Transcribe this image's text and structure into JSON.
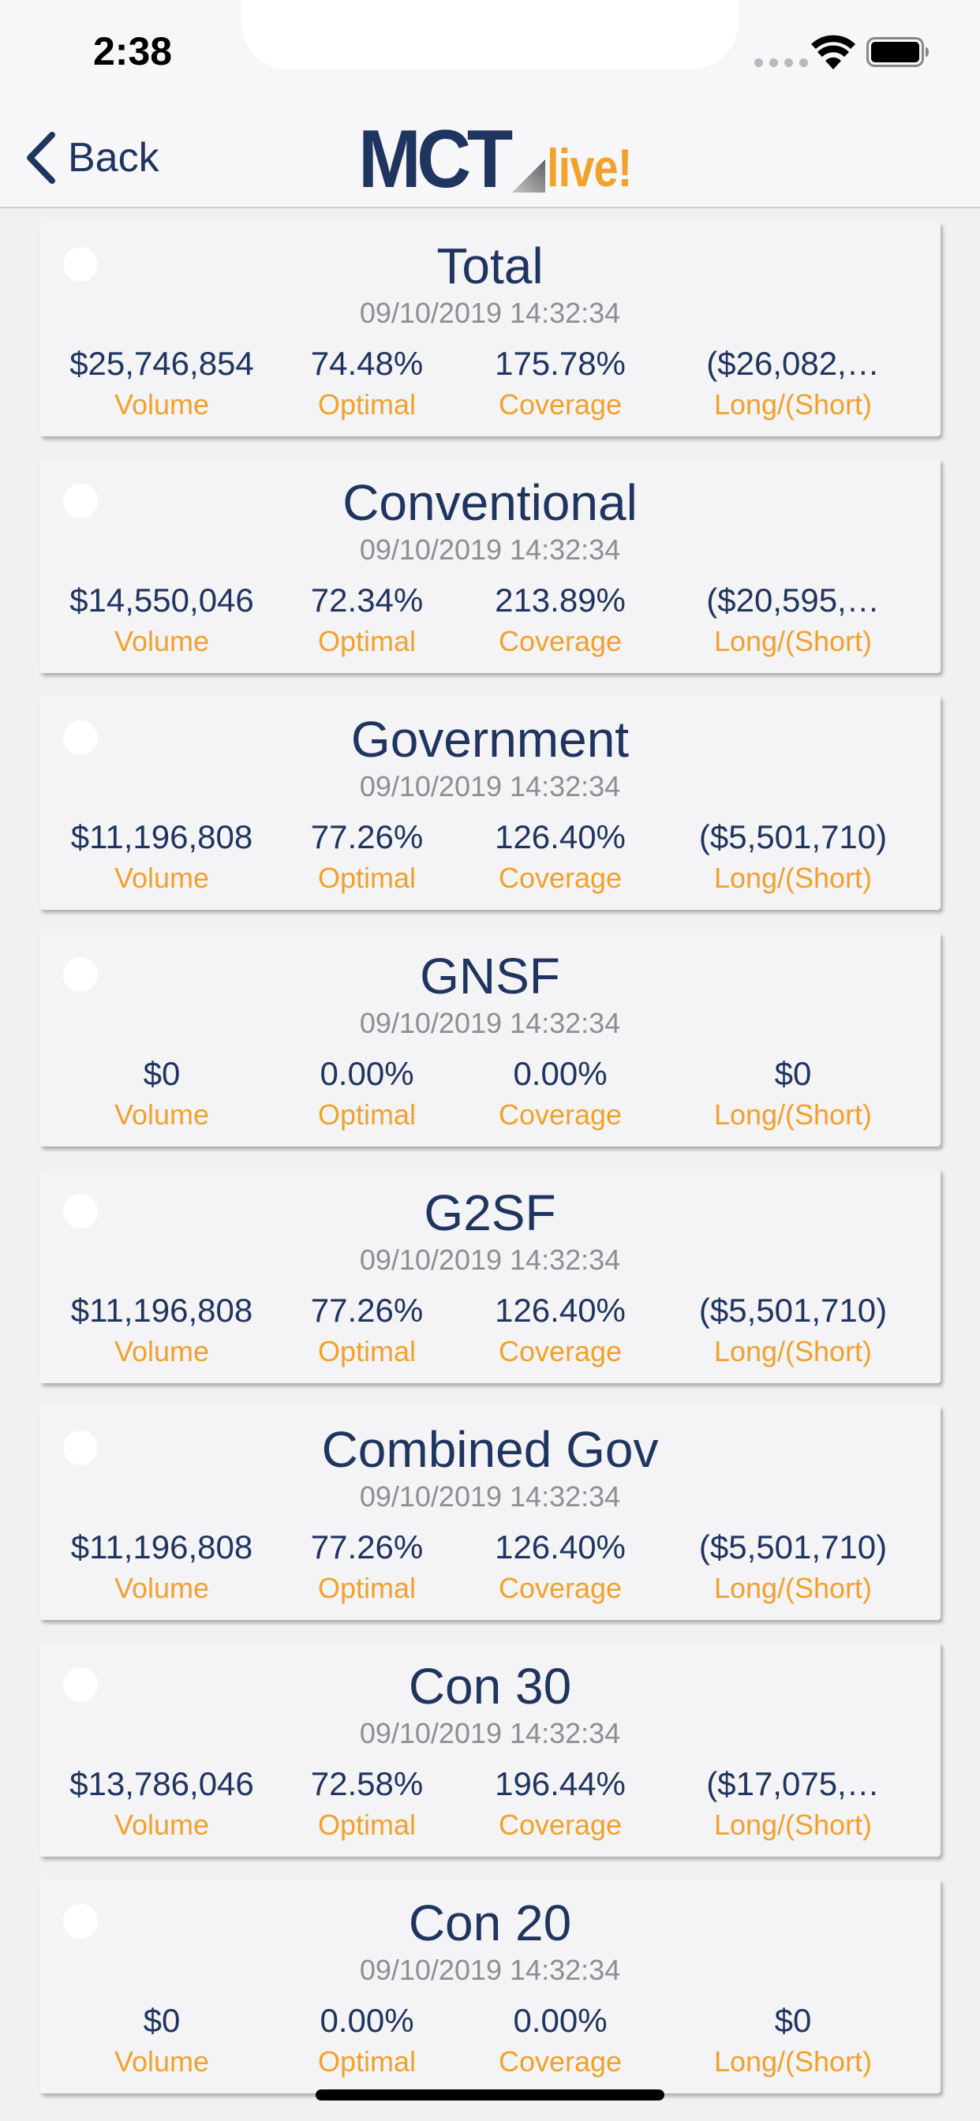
{
  "status_bar": {
    "time": "2:38"
  },
  "nav": {
    "back_label": "Back",
    "logo_primary": "MCT",
    "logo_secondary": "live!"
  },
  "metric_labels": [
    "Volume",
    "Optimal",
    "Coverage",
    "Long/(Short)"
  ],
  "cards": [
    {
      "title": "Total",
      "timestamp": "09/10/2019 14:32:34",
      "volume": "$25,746,854",
      "optimal": "74.48%",
      "coverage": "175.78%",
      "long_short": "($26,082,…",
      "labels": [
        "Volume",
        "Optimal",
        "Coverage",
        "Long/(Short)"
      ]
    },
    {
      "title": "Conventional",
      "timestamp": "09/10/2019 14:32:34",
      "volume": "$14,550,046",
      "optimal": "72.34%",
      "coverage": "213.89%",
      "long_short": "($20,595,…",
      "labels": [
        "Volume",
        "Optimal",
        "Coverage",
        "Long/(Short)"
      ]
    },
    {
      "title": "Government",
      "timestamp": "09/10/2019 14:32:34",
      "volume": "$11,196,808",
      "optimal": "77.26%",
      "coverage": "126.40%",
      "long_short": "($5,501,710)",
      "labels": [
        "Volume",
        "Optimal",
        "Coverage",
        "Long/(Short)"
      ]
    },
    {
      "title": "GNSF",
      "timestamp": "09/10/2019 14:32:34",
      "volume": "$0",
      "optimal": "0.00%",
      "coverage": "0.00%",
      "long_short": "$0",
      "labels": [
        "Volume",
        "Optimal",
        "Coverage",
        "Long/(Short)"
      ]
    },
    {
      "title": "G2SF",
      "timestamp": "09/10/2019 14:32:34",
      "volume": "$11,196,808",
      "optimal": "77.26%",
      "coverage": "126.40%",
      "long_short": "($5,501,710)",
      "labels": [
        "Volume",
        "Optimal",
        "Coverage",
        "Long/(Short)"
      ]
    },
    {
      "title": "Combined Gov",
      "timestamp": "09/10/2019 14:32:34",
      "volume": "$11,196,808",
      "optimal": "77.26%",
      "coverage": "126.40%",
      "long_short": "($5,501,710)",
      "labels": [
        "Volume",
        "Optimal",
        "Coverage",
        "Long/(Short)"
      ]
    },
    {
      "title": "Con 30",
      "timestamp": "09/10/2019 14:32:34",
      "volume": "$13,786,046",
      "optimal": "72.58%",
      "coverage": "196.44%",
      "long_short": "($17,075,…",
      "labels": [
        "Volume",
        "Optimal",
        "Coverage",
        "Long/(Short)"
      ]
    },
    {
      "title": "Con 20",
      "timestamp": "09/10/2019 14:32:34",
      "volume": "$0",
      "optimal": "0.00%",
      "coverage": "0.00%",
      "long_short": "$0",
      "labels": [
        "Volume",
        "Optimal",
        "Coverage",
        "Long/(Short)"
      ]
    }
  ],
  "colors": {
    "navy": "#1f3560",
    "orange": "#f2a12b",
    "gray_text": "#8e8e93",
    "card_bg": "#f4f3f5"
  },
  "icons": {
    "back": "chevron-left-icon",
    "wifi": "wifi-icon",
    "battery": "battery-icon"
  }
}
